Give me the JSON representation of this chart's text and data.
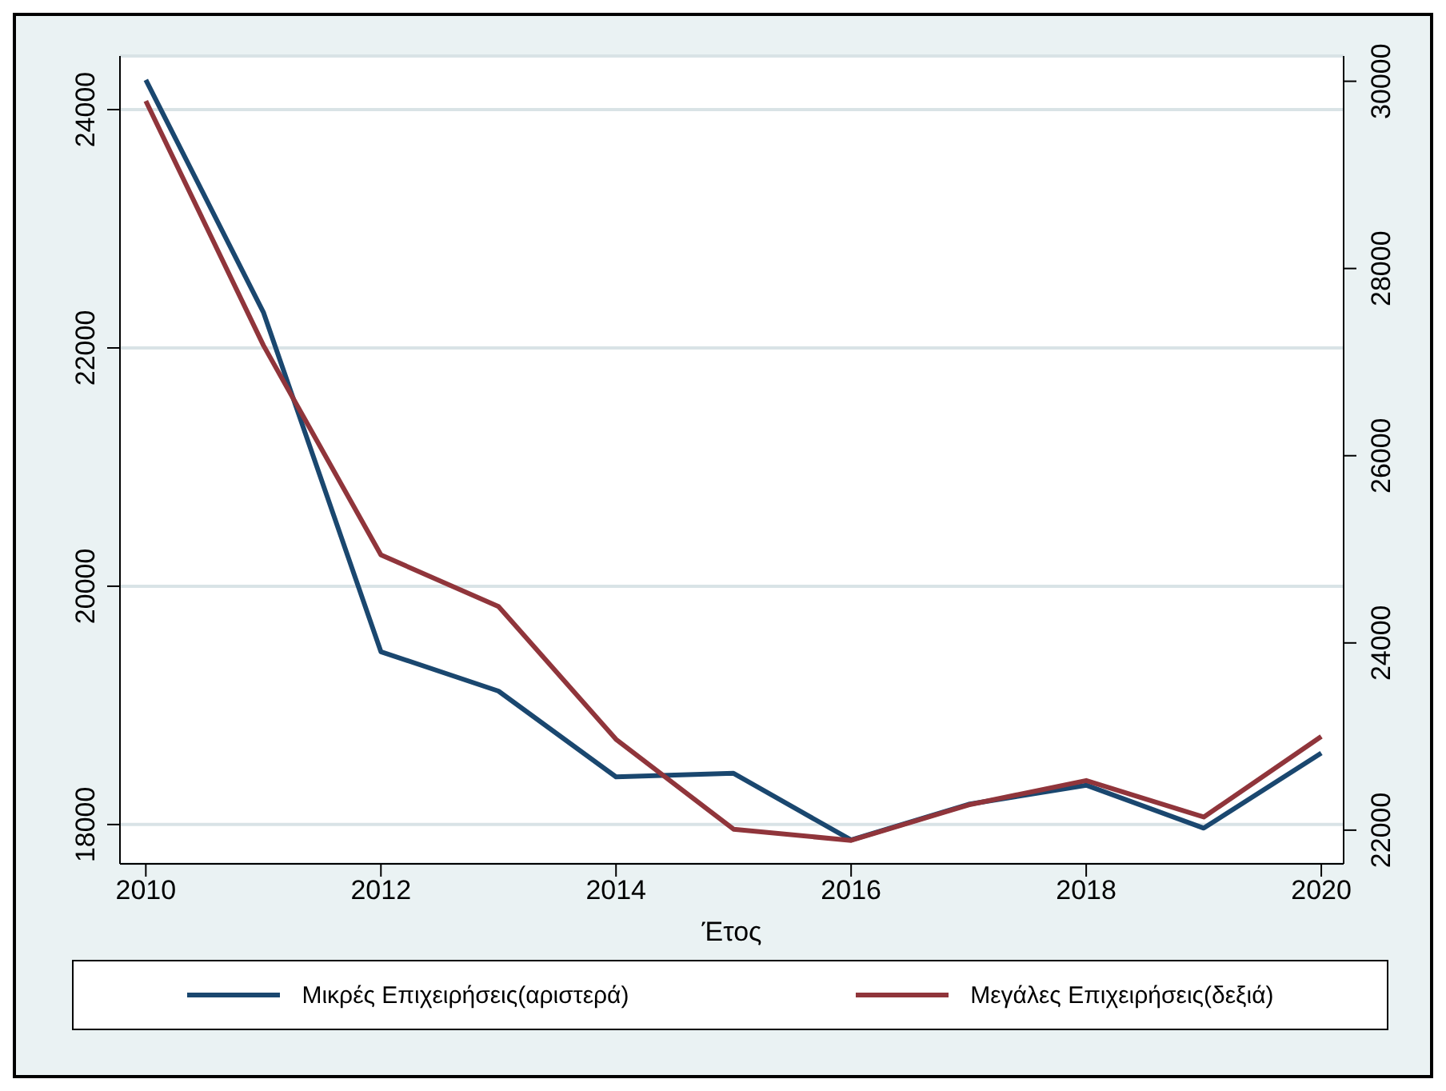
{
  "chart_data": {
    "type": "line",
    "xlabel": "Έτος",
    "x": [
      2010,
      2011,
      2012,
      2013,
      2014,
      2015,
      2016,
      2017,
      2018,
      2019,
      2020
    ],
    "xlim": [
      2009.78,
      2020.19
    ],
    "xticks": [
      2010,
      2012,
      2014,
      2016,
      2018,
      2020
    ],
    "ylim": [
      17670,
      24450
    ],
    "yticks": [
      18000,
      20000,
      22000,
      24000
    ],
    "y2lim": [
      21640,
      30270
    ],
    "y2ticks": [
      22000,
      24000,
      26000,
      28000,
      30000
    ],
    "grid": "y",
    "legend": "bottom",
    "line_style": "solid",
    "marker": "none",
    "series": [
      {
        "name": "Μικρές Επιχειρήσεις(αριστερά)",
        "color": "#1a476f",
        "values": [
          24250,
          22300,
          19450,
          19120,
          18400,
          18430,
          17870,
          18170,
          18330,
          17970,
          18600
        ]
      },
      {
        "name": "Μεγάλες Επιχειρήσεις(δεξιά)",
        "color": "#90353b",
        "axis": "y2",
        "values": [
          29790,
          27180,
          24940,
          24390,
          22970,
          22010,
          21890,
          22270,
          22530,
          22140,
          23000
        ]
      }
    ]
  }
}
